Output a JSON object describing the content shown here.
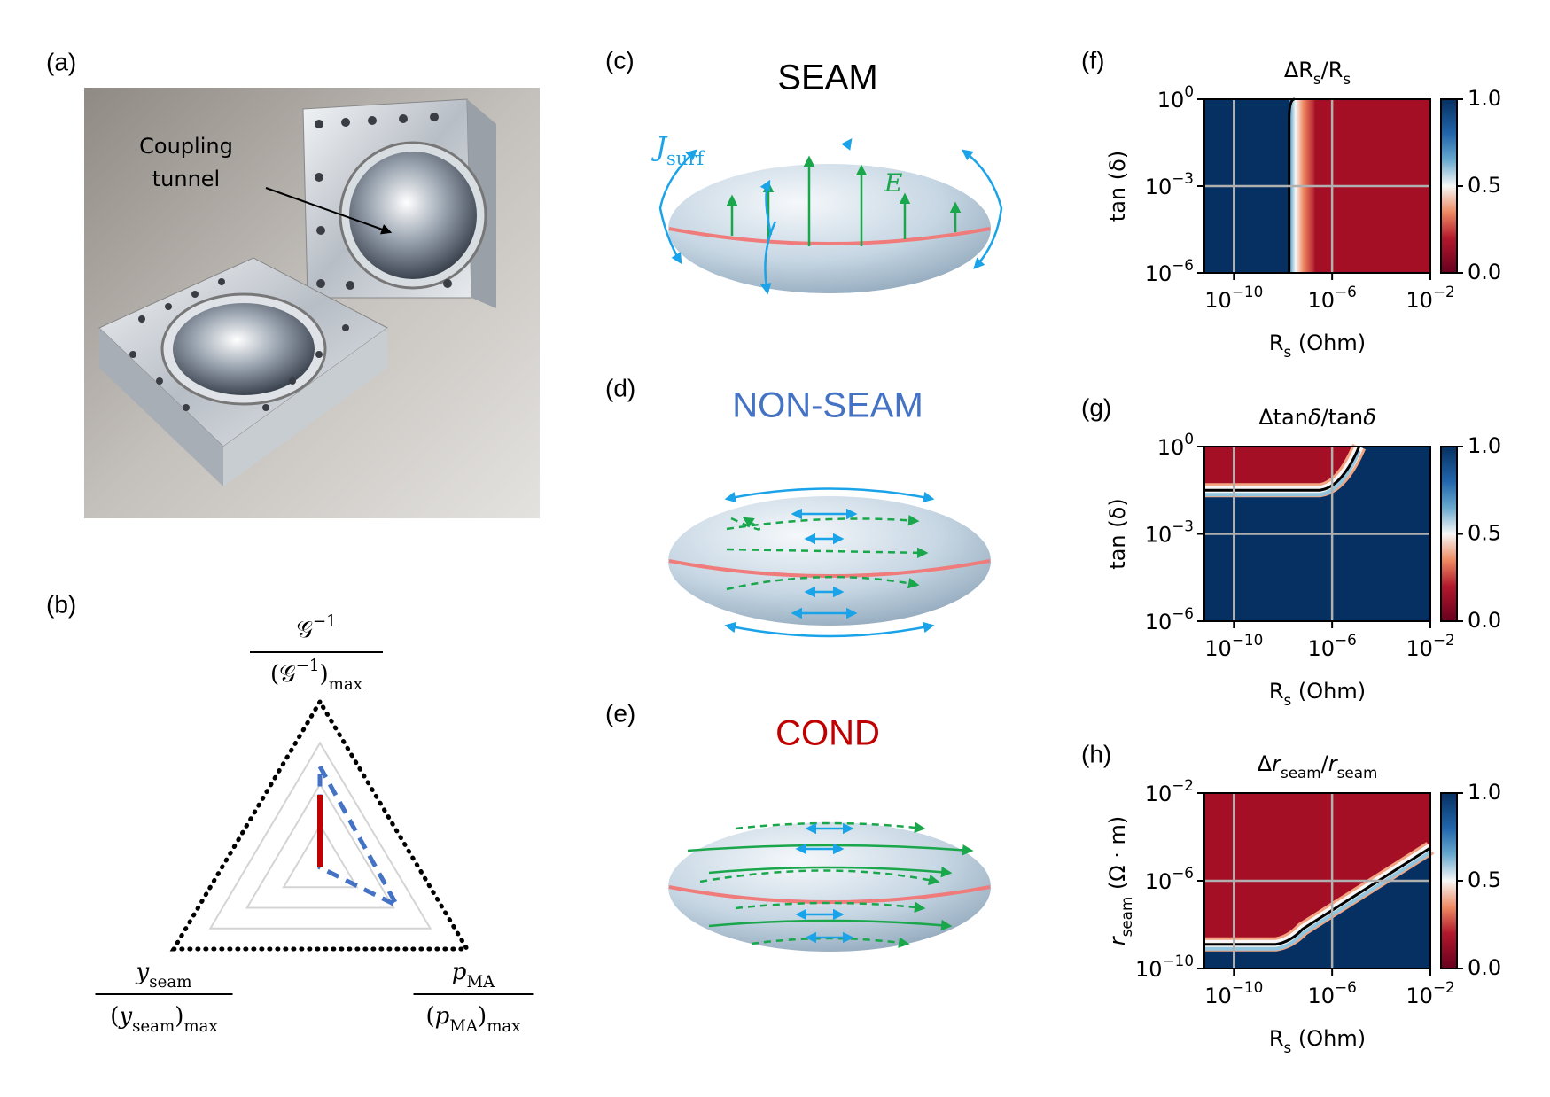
{
  "panels": {
    "a": {
      "label": "(a)",
      "annotation": [
        "Coupling",
        "tunnel"
      ]
    },
    "b": {
      "label": "(b)",
      "axes": [
        {
          "num": [
            {
              "t": "𝒢"
            },
            {
              "sup": "−1"
            }
          ],
          "den": [
            {
              "t": "(𝒢"
            },
            {
              "sup": "−1"
            },
            {
              "t": ")"
            },
            {
              "sub": "max"
            }
          ]
        },
        {
          "num": [
            {
              "i": "y"
            },
            {
              "sub": "seam"
            }
          ],
          "den": [
            {
              "t": "("
            },
            {
              "i": "y"
            },
            {
              "sub": "seam"
            },
            {
              "t": ")"
            },
            {
              "sub": "max"
            }
          ]
        },
        {
          "num": [
            {
              "i": "p"
            },
            {
              "sub": "MA"
            }
          ],
          "den": [
            {
              "t": "("
            },
            {
              "i": "p"
            },
            {
              "sub": "MA"
            },
            {
              "t": ")"
            },
            {
              "sub": "max"
            }
          ]
        }
      ]
    },
    "c": {
      "label": "(c)",
      "title": "SEAM",
      "current": [
        {
          "i": "J"
        },
        {
          "sub": "surf"
        }
      ],
      "field": [
        {
          "i": "E"
        }
      ]
    },
    "d": {
      "label": "(d)",
      "title": "NON-SEAM",
      "color": "#4472c4"
    },
    "e": {
      "label": "(e)",
      "title": "COND",
      "color": "#c00000"
    },
    "f": {
      "label": "(f)",
      "title": [
        {
          "t": "ΔR"
        },
        {
          "sub": "s"
        },
        {
          "t": "/R"
        },
        {
          "sub": "s"
        }
      ],
      "xlabel": [
        {
          "t": "R"
        },
        {
          "sub": "s"
        },
        {
          "t": " (Ohm)"
        }
      ],
      "ylabel": [
        {
          "t": "tan (δ)"
        }
      ],
      "xscale": "log",
      "yscale": "log",
      "grid": true,
      "xlim": [
        6.3e-12,
        0.01
      ],
      "ylim": [
        1e-06,
        1
      ],
      "xticks": [
        {
          "value": 1e-10,
          "label": {
            "base": "10",
            "exp": "−10"
          }
        },
        {
          "value": 1e-06,
          "label": {
            "base": "10",
            "exp": "−6"
          }
        },
        {
          "value": 0.01,
          "label": {
            "base": "10",
            "exp": "−2"
          }
        }
      ],
      "yticks": [
        {
          "value": 1e-06,
          "label": {
            "base": "10",
            "exp": "−6"
          }
        },
        {
          "value": 0.001,
          "label": {
            "base": "10",
            "exp": "−3"
          }
        },
        {
          "value": 1,
          "label": {
            "base": "10",
            "exp": "0"
          }
        }
      ],
      "clim": [
        0,
        1
      ],
      "cticks": [
        {
          "value": 0,
          "label": "0.0"
        },
        {
          "value": 0.5,
          "label": "0.5"
        },
        {
          "value": 1,
          "label": "1.0"
        }
      ]
    },
    "g": {
      "label": "(g)",
      "title": [
        {
          "t": "Δtan"
        },
        {
          "i": "δ"
        },
        {
          "t": "/tan"
        },
        {
          "i": "δ"
        }
      ],
      "xlabel": [
        {
          "t": "R"
        },
        {
          "sub": "s"
        },
        {
          "t": " (Ohm)"
        }
      ],
      "ylabel": [
        {
          "t": "tan (δ)"
        }
      ],
      "xscale": "log",
      "yscale": "log",
      "grid": true,
      "xlim": [
        6.3e-12,
        0.01
      ],
      "ylim": [
        1e-06,
        1
      ],
      "xticks": [
        {
          "value": 1e-10,
          "label": {
            "base": "10",
            "exp": "−10"
          }
        },
        {
          "value": 1e-06,
          "label": {
            "base": "10",
            "exp": "−6"
          }
        },
        {
          "value": 0.01,
          "label": {
            "base": "10",
            "exp": "−2"
          }
        }
      ],
      "yticks": [
        {
          "value": 1e-06,
          "label": {
            "base": "10",
            "exp": "−6"
          }
        },
        {
          "value": 0.001,
          "label": {
            "base": "10",
            "exp": "−3"
          }
        },
        {
          "value": 1,
          "label": {
            "base": "10",
            "exp": "0"
          }
        }
      ],
      "clim": [
        0,
        1
      ],
      "cticks": [
        {
          "value": 0,
          "label": "0.0"
        },
        {
          "value": 0.5,
          "label": "0.5"
        },
        {
          "value": 1,
          "label": "1.0"
        }
      ]
    },
    "h": {
      "label": "(h)",
      "title": [
        {
          "t": "Δ"
        },
        {
          "i": "r"
        },
        {
          "sub": "seam"
        },
        {
          "t": "/"
        },
        {
          "i": "r"
        },
        {
          "sub": "seam"
        }
      ],
      "xlabel": [
        {
          "t": "R"
        },
        {
          "sub": "s"
        },
        {
          "t": " (Ohm)"
        }
      ],
      "ylabel": [
        {
          "i": "r"
        },
        {
          "sub": "seam"
        },
        {
          "t": " (Ω · m)"
        }
      ],
      "xscale": "log",
      "yscale": "log",
      "grid": true,
      "xlim": [
        6.3e-12,
        0.01
      ],
      "ylim": [
        1e-10,
        0.01
      ],
      "xticks": [
        {
          "value": 1e-10,
          "label": {
            "base": "10",
            "exp": "−10"
          }
        },
        {
          "value": 1e-06,
          "label": {
            "base": "10",
            "exp": "−6"
          }
        },
        {
          "value": 0.01,
          "label": {
            "base": "10",
            "exp": "−2"
          }
        }
      ],
      "yticks": [
        {
          "value": 1e-10,
          "label": {
            "base": "10",
            "exp": "−10"
          }
        },
        {
          "value": 1e-06,
          "label": {
            "base": "10",
            "exp": "−6"
          }
        },
        {
          "value": 0.01,
          "label": {
            "base": "10",
            "exp": "−2"
          }
        }
      ],
      "clim": [
        0,
        1
      ],
      "cticks": [
        {
          "value": 0,
          "label": "0.0"
        },
        {
          "value": 0.5,
          "label": "0.5"
        },
        {
          "value": 1,
          "label": "1.0"
        }
      ]
    }
  }
}
